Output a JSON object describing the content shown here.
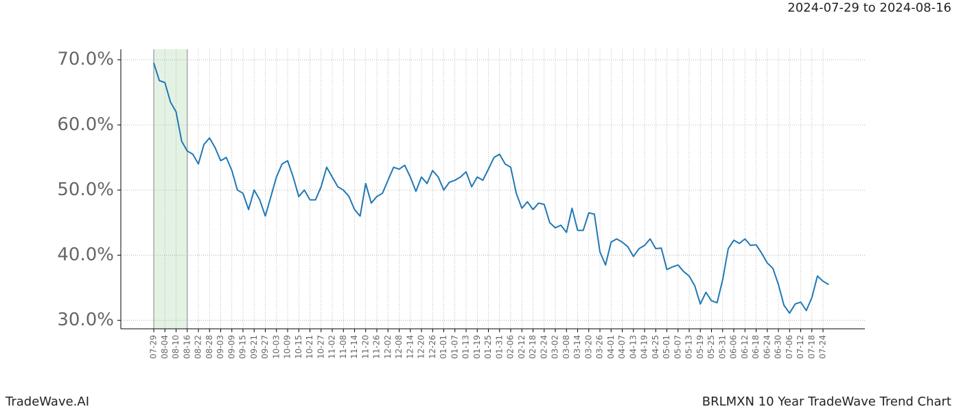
{
  "chart_data": {
    "type": "line",
    "subtitle": "2024-07-29 to 2024-08-16",
    "footer_left": "TradeWave.AI",
    "footer_right": "BRLMXN 10 Year TradeWave Trend Chart",
    "categories": [
      "07-29",
      null,
      "08-04",
      null,
      "08-10",
      null,
      "08-16",
      null,
      "08-22",
      null,
      "08-28",
      null,
      "09-03",
      null,
      "09-09",
      null,
      "09-15",
      null,
      "09-21",
      null,
      "09-27",
      null,
      "10-03",
      null,
      "10-09",
      null,
      "10-15",
      null,
      "10-21",
      null,
      "10-27",
      null,
      "11-02",
      null,
      "11-08",
      null,
      "11-14",
      null,
      "11-20",
      null,
      "11-26",
      null,
      "12-02",
      null,
      "12-08",
      null,
      "12-14",
      null,
      "12-20",
      null,
      "12-26",
      null,
      "01-01",
      null,
      "01-07",
      null,
      "01-13",
      null,
      "01-19",
      null,
      "01-25",
      null,
      "01-31",
      null,
      "02-06",
      null,
      "02-12",
      null,
      "02-18",
      null,
      "02-24",
      null,
      "03-02",
      null,
      "03-08",
      null,
      "03-14",
      null,
      "03-20",
      null,
      "03-26",
      null,
      "04-01",
      null,
      "04-07",
      null,
      "04-13",
      null,
      "04-19",
      null,
      "04-25",
      null,
      "05-01",
      null,
      "05-07",
      null,
      "05-13",
      null,
      "05-19",
      null,
      "05-25",
      null,
      "05-31",
      null,
      "06-06",
      null,
      "06-12",
      null,
      "06-18",
      null,
      "06-24",
      null,
      "06-30",
      null,
      "07-06",
      null,
      "07-12",
      null,
      "07-18",
      null,
      "07-24",
      null
    ],
    "values": [
      69.5,
      66.8,
      66.5,
      63.5,
      62,
      57.5,
      56,
      55.5,
      54,
      57,
      58,
      56.5,
      54.5,
      55,
      53,
      50,
      49.5,
      47,
      50,
      48.5,
      46,
      49,
      52,
      54,
      54.5,
      52,
      49,
      50,
      48.5,
      48.5,
      50.5,
      53.5,
      52,
      50.5,
      50,
      49,
      47,
      46,
      51,
      48,
      49,
      49.5,
      51.5,
      53.5,
      53.2,
      53.8,
      52,
      49.8,
      52,
      51,
      53,
      52,
      50,
      51.2,
      51.5,
      52,
      52.8,
      50.5,
      52,
      51.5,
      53.2,
      55,
      55.5,
      54,
      53.5,
      49.5,
      47.2,
      48.2,
      47,
      48,
      47.8,
      45,
      44.2,
      44.6,
      43.5,
      47.2,
      43.8,
      43.8,
      46.5,
      46.3,
      40.5,
      38.5,
      42,
      42.5,
      42,
      41.3,
      39.8,
      41,
      41.5,
      42.5,
      41,
      41.1,
      37.8,
      38.2,
      38.5,
      37.5,
      36.8,
      35.3,
      32.5,
      34.3,
      33,
      32.7,
      36.2,
      41,
      42.3,
      41.8,
      42.5,
      41.5,
      41.6,
      40.3,
      38.8,
      38,
      35.5,
      32.3,
      31.1,
      32.5,
      32.8,
      31.5,
      33.5,
      36.8,
      36,
      35.5
    ],
    "color": "#1f77b4",
    "ylim": [
      28.7,
      71.6
    ],
    "yticks": [
      {
        "value": 30,
        "label": "30.0%"
      },
      {
        "value": 40,
        "label": "40.0%"
      },
      {
        "value": 50,
        "label": "50.0%"
      },
      {
        "value": 60,
        "label": "60.0%"
      },
      {
        "value": 70,
        "label": "70.0%"
      }
    ],
    "grid": true,
    "shade": {
      "from": "07-29",
      "to": "08-16",
      "color": "#d8ecd8"
    }
  }
}
